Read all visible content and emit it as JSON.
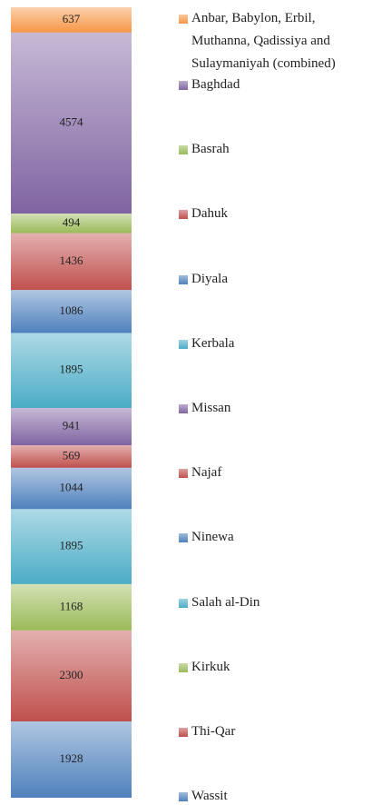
{
  "chart_data": {
    "type": "stacked-bar",
    "series": [
      {
        "name": "Anbar, Babylon, Erbil, Muthanna, Qadissiya and Sulaymaniyah (combined)",
        "color": "#f79646",
        "values": [
          637
        ]
      },
      {
        "name": "Baghdad",
        "color": "#8064a2",
        "values": [
          4574
        ]
      },
      {
        "name": "Basrah",
        "color": "#9bbb59",
        "values": [
          494
        ]
      },
      {
        "name": "Dahuk",
        "color": "#c0504d",
        "values": [
          1436
        ]
      },
      {
        "name": "Diyala",
        "color": "#4f81bd",
        "values": [
          1086
        ]
      },
      {
        "name": "Kerbala",
        "color": "#4bacc6",
        "values": [
          1895
        ]
      },
      {
        "name": "Missan",
        "color": "#8064a2",
        "values": [
          941
        ]
      },
      {
        "name": "Najaf",
        "color": "#c0504d",
        "values": [
          569
        ]
      },
      {
        "name": "Ninewa",
        "color": "#4f81bd",
        "values": [
          1044
        ]
      },
      {
        "name": "Salah al-Din",
        "color": "#4bacc6",
        "values": [
          1895
        ]
      },
      {
        "name": "Kirkuk",
        "color": "#9bbb59",
        "values": [
          1168
        ]
      },
      {
        "name": "Thi-Qar",
        "color": "#c0504d",
        "values": [
          2300
        ]
      },
      {
        "name": "Wassit",
        "color": "#4f81bd",
        "values": [
          1928
        ]
      }
    ]
  }
}
